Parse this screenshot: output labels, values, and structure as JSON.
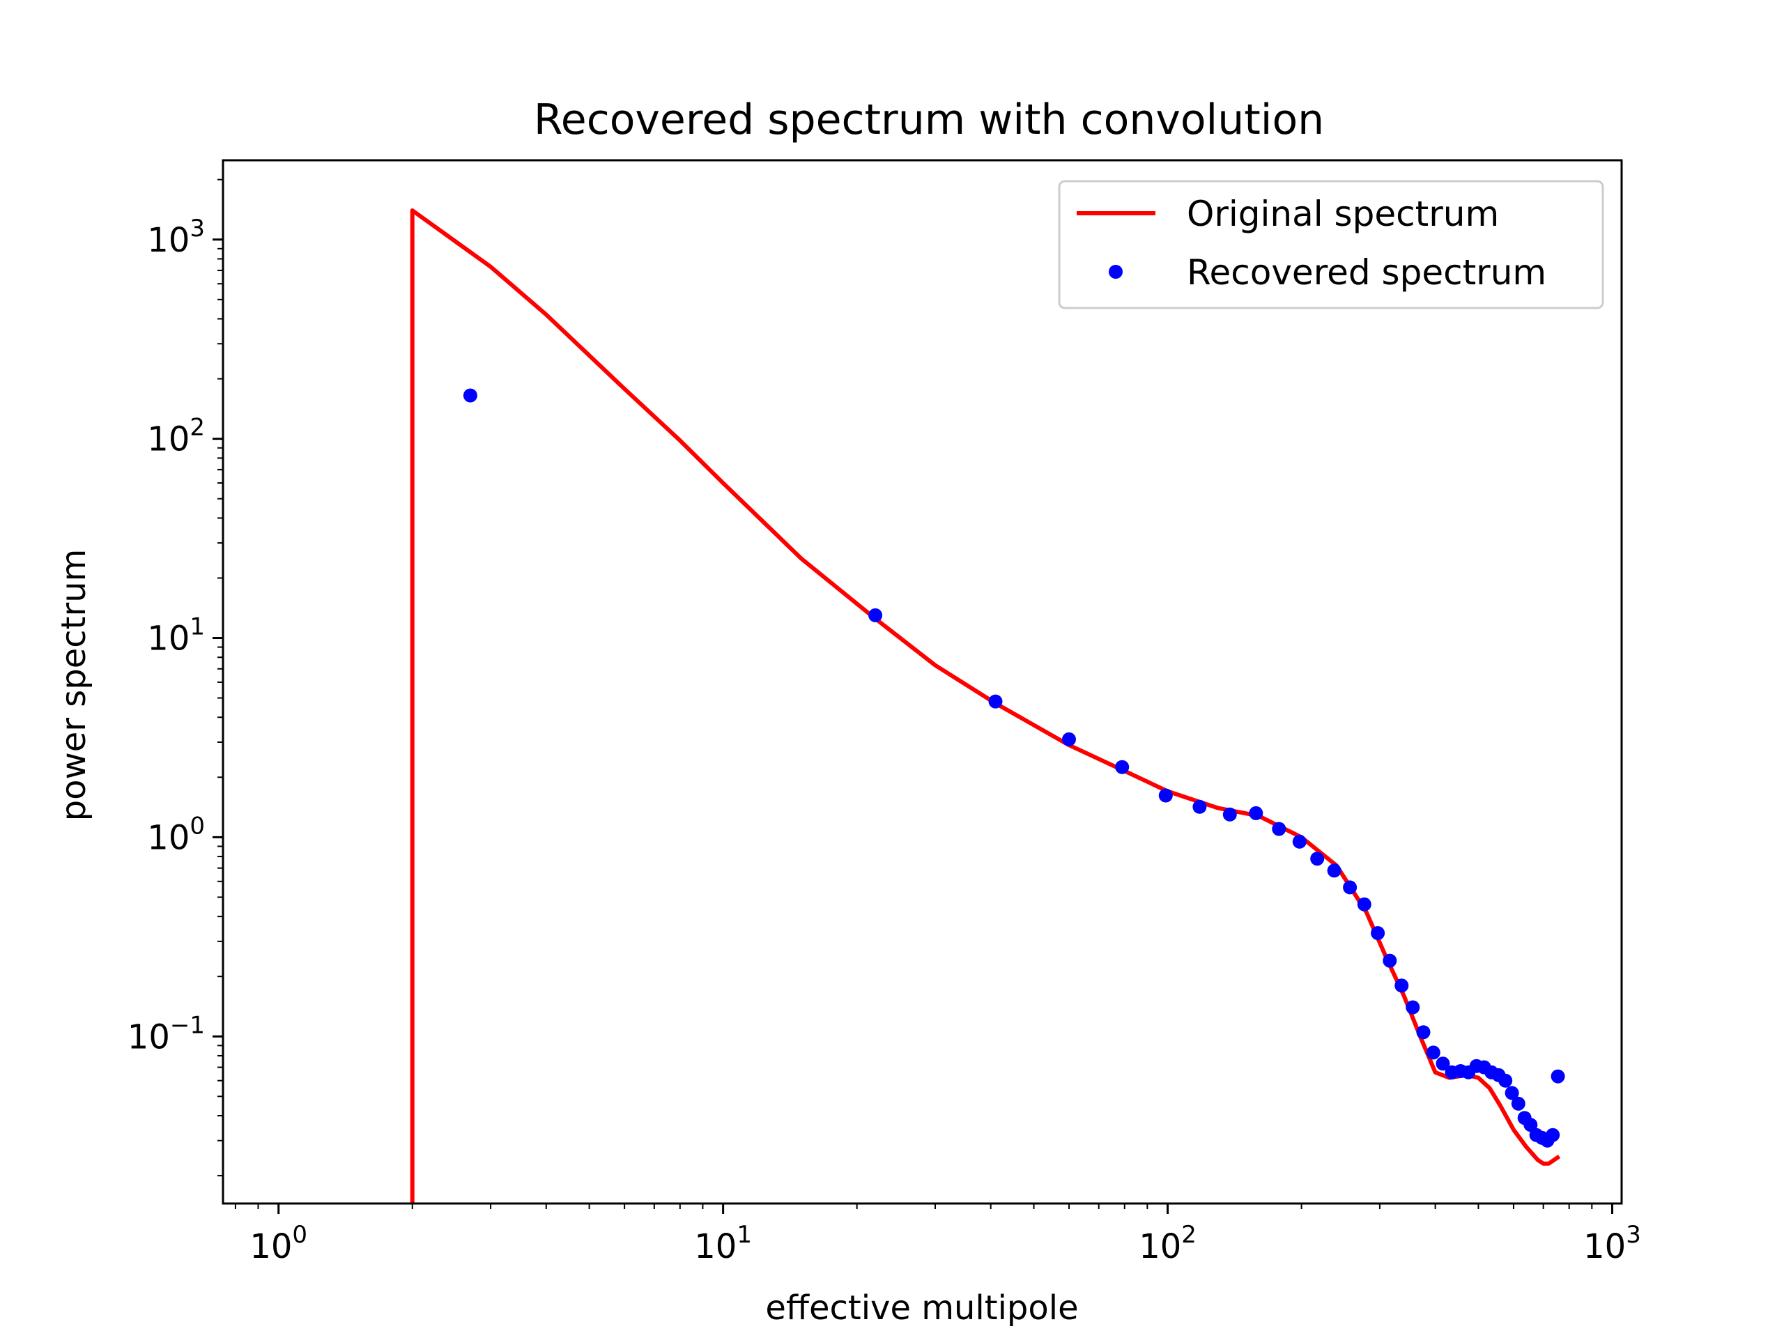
{
  "chart_data": {
    "type": "line",
    "title": "Recovered spectrum with convolution",
    "xlabel": "effective multipole",
    "ylabel": "power spectrum",
    "xscale": "log",
    "yscale": "log",
    "xlim": [
      0.75,
      1050
    ],
    "ylim": [
      0.0145,
      2500
    ],
    "grid": false,
    "legend_loc": "upper right",
    "x_ticks": [
      {
        "value": 1,
        "base": "10",
        "exp": "0"
      },
      {
        "value": 10,
        "base": "10",
        "exp": "1"
      },
      {
        "value": 100,
        "base": "10",
        "exp": "2"
      },
      {
        "value": 1000,
        "base": "10",
        "exp": "3"
      }
    ],
    "y_ticks": [
      {
        "value": 0.1,
        "base": "10",
        "exp": "−1"
      },
      {
        "value": 1,
        "base": "10",
        "exp": "0"
      },
      {
        "value": 10,
        "base": "10",
        "exp": "1"
      },
      {
        "value": 100,
        "base": "10",
        "exp": "2"
      },
      {
        "value": 1000,
        "base": "10",
        "exp": "3"
      }
    ],
    "series": [
      {
        "name": "Original spectrum",
        "style": "line",
        "color": "#ff0000",
        "x": [
          2,
          2,
          3,
          4,
          6,
          8,
          10,
          15,
          22,
          30,
          41,
          60,
          80,
          100,
          130,
          160,
          200,
          240,
          280,
          310,
          340,
          370,
          400,
          430,
          470,
          500,
          530,
          560,
          600,
          640,
          680,
          700,
          720,
          740,
          760
        ],
        "y": [
          0.0145,
          1400,
          730,
          420,
          178,
          98,
          60,
          25,
          12.5,
          7.3,
          4.7,
          2.9,
          2.15,
          1.7,
          1.4,
          1.28,
          1.0,
          0.72,
          0.42,
          0.25,
          0.16,
          0.1,
          0.066,
          0.062,
          0.064,
          0.062,
          0.055,
          0.045,
          0.034,
          0.028,
          0.024,
          0.023,
          0.023,
          0.024,
          0.025
        ]
      },
      {
        "name": "Recovered spectrum",
        "style": "markers",
        "color": "#0000ff",
        "x": [
          2.7,
          22,
          41,
          60,
          79,
          99,
          118,
          138,
          158,
          178,
          198,
          217,
          237,
          257,
          277,
          297,
          316,
          336,
          356,
          376,
          396,
          416,
          436,
          456,
          475,
          495,
          515,
          535,
          555,
          575,
          595,
          615,
          635,
          655,
          675,
          695,
          715,
          735,
          755
        ],
        "y": [
          165,
          13,
          4.8,
          3.1,
          2.25,
          1.62,
          1.42,
          1.3,
          1.32,
          1.1,
          0.95,
          0.78,
          0.68,
          0.56,
          0.46,
          0.33,
          0.24,
          0.18,
          0.14,
          0.105,
          0.083,
          0.073,
          0.066,
          0.067,
          0.066,
          0.071,
          0.07,
          0.066,
          0.064,
          0.06,
          0.052,
          0.046,
          0.039,
          0.036,
          0.032,
          0.031,
          0.03,
          0.032,
          0.063
        ]
      }
    ]
  }
}
